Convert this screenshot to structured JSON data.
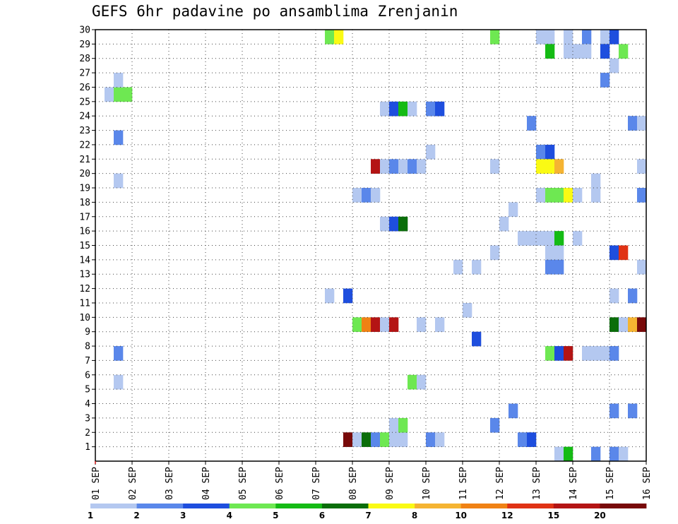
{
  "chart_data": {
    "type": "heatmap",
    "title": "GEFS 6hr padavine po ansamblima Zrenjanin",
    "xlabel": "",
    "ylabel": "",
    "x_tick_labels": [
      "01 SEP",
      "02 SEP",
      "03 SEP",
      "04 SEP",
      "05 SEP",
      "06 SEP",
      "07 SEP",
      "08 SEP",
      "09 SEP",
      "10 SEP",
      "11 SEP",
      "12 SEP",
      "13 SEP",
      "14 SEP",
      "15 SEP",
      "16 SEP"
    ],
    "y_ticks": [
      1,
      2,
      3,
      4,
      5,
      6,
      7,
      8,
      9,
      10,
      11,
      12,
      13,
      14,
      15,
      16,
      17,
      18,
      19,
      20,
      21,
      22,
      23,
      24,
      25,
      26,
      27,
      28,
      29,
      30
    ],
    "ylim": [
      0,
      30
    ],
    "steps_per_day": 4,
    "n_steps": 60,
    "grid": true,
    "color_levels": [
      1,
      2,
      3,
      4,
      5,
      6,
      7,
      8,
      10,
      12,
      15,
      20
    ],
    "color_bins": [
      "#b4c8f0",
      "#5a87ea",
      "#1e4ede",
      "#6ee852",
      "#14bb14",
      "#0a6e0a",
      "#fafa14",
      "#f5b432",
      "#f08214",
      "#e03214",
      "#b41414",
      "#780a0a"
    ],
    "cells": [
      [
        1,
        25,
        0
      ],
      [
        2,
        25,
        3
      ],
      [
        3,
        25,
        3
      ],
      [
        2,
        26,
        0
      ],
      [
        2,
        22,
        1
      ],
      [
        2,
        19,
        0
      ],
      [
        2,
        7,
        1
      ],
      [
        2,
        5,
        0
      ],
      [
        25,
        29,
        3
      ],
      [
        26,
        29,
        6
      ],
      [
        25,
        11,
        0
      ],
      [
        27,
        11,
        2
      ],
      [
        28,
        18,
        0
      ],
      [
        29,
        18,
        1
      ],
      [
        30,
        18,
        0
      ],
      [
        27,
        1,
        11
      ],
      [
        28,
        1,
        0
      ],
      [
        29,
        1,
        5
      ],
      [
        30,
        1,
        1
      ],
      [
        31,
        1,
        3
      ],
      [
        32,
        1,
        0
      ],
      [
        33,
        1,
        0
      ],
      [
        28,
        9,
        3
      ],
      [
        29,
        9,
        8
      ],
      [
        30,
        9,
        10
      ],
      [
        31,
        9,
        0
      ],
      [
        32,
        9,
        10
      ],
      [
        30,
        20,
        10
      ],
      [
        31,
        20,
        0
      ],
      [
        32,
        20,
        1
      ],
      [
        33,
        20,
        0
      ],
      [
        34,
        20,
        1
      ],
      [
        35,
        20,
        0
      ],
      [
        31,
        24,
        0
      ],
      [
        32,
        24,
        2
      ],
      [
        33,
        24,
        4
      ],
      [
        34,
        24,
        0
      ],
      [
        36,
        24,
        1
      ],
      [
        37,
        24,
        2
      ],
      [
        31,
        16,
        0
      ],
      [
        32,
        16,
        2
      ],
      [
        33,
        16,
        5
      ],
      [
        32,
        2,
        0
      ],
      [
        33,
        2,
        3
      ],
      [
        34,
        5,
        3
      ],
      [
        35,
        5,
        0
      ],
      [
        35,
        9,
        0
      ],
      [
        37,
        9,
        0
      ],
      [
        36,
        21,
        0
      ],
      [
        36,
        1,
        1
      ],
      [
        37,
        1,
        0
      ],
      [
        39,
        13,
        0
      ],
      [
        41,
        13,
        0
      ],
      [
        40,
        10,
        0
      ],
      [
        41,
        8,
        2
      ],
      [
        43,
        29,
        3
      ],
      [
        43,
        20,
        0
      ],
      [
        43,
        14,
        0
      ],
      [
        43,
        2,
        1
      ],
      [
        44,
        16,
        0
      ],
      [
        45,
        17,
        0
      ],
      [
        45,
        3,
        1
      ],
      [
        46,
        15,
        0
      ],
      [
        47,
        15,
        0
      ],
      [
        48,
        15,
        0
      ],
      [
        49,
        15,
        0
      ],
      [
        50,
        15,
        4
      ],
      [
        52,
        15,
        0
      ],
      [
        46,
        1,
        1
      ],
      [
        47,
        1,
        2
      ],
      [
        47,
        23,
        1
      ],
      [
        48,
        29,
        0
      ],
      [
        49,
        29,
        0
      ],
      [
        51,
        29,
        0
      ],
      [
        53,
        29,
        1
      ],
      [
        55,
        29,
        0
      ],
      [
        56,
        29,
        2
      ],
      [
        48,
        21,
        1
      ],
      [
        49,
        21,
        2
      ],
      [
        48,
        20,
        6
      ],
      [
        49,
        20,
        6
      ],
      [
        50,
        20,
        7
      ],
      [
        48,
        18,
        0
      ],
      [
        49,
        18,
        3
      ],
      [
        50,
        18,
        3
      ],
      [
        51,
        18,
        6
      ],
      [
        52,
        18,
        0
      ],
      [
        54,
        18,
        0
      ],
      [
        49,
        28,
        4
      ],
      [
        51,
        28,
        0
      ],
      [
        52,
        28,
        0
      ],
      [
        53,
        28,
        0
      ],
      [
        55,
        28,
        2
      ],
      [
        57,
        28,
        3
      ],
      [
        49,
        14,
        0
      ],
      [
        50,
        14,
        0
      ],
      [
        49,
        13,
        1
      ],
      [
        50,
        13,
        1
      ],
      [
        49,
        7,
        3
      ],
      [
        50,
        7,
        2
      ],
      [
        51,
        7,
        10
      ],
      [
        53,
        7,
        0
      ],
      [
        54,
        7,
        0
      ],
      [
        55,
        7,
        0
      ],
      [
        56,
        7,
        1
      ],
      [
        50,
        0,
        0
      ],
      [
        51,
        0,
        4
      ],
      [
        54,
        0,
        1
      ],
      [
        56,
        0,
        1
      ],
      [
        57,
        0,
        0
      ],
      [
        54,
        19,
        0
      ],
      [
        55,
        26,
        1
      ],
      [
        56,
        27,
        0
      ],
      [
        56,
        14,
        2
      ],
      [
        57,
        14,
        9
      ],
      [
        56,
        11,
        0
      ],
      [
        56,
        9,
        5
      ],
      [
        57,
        9,
        0
      ],
      [
        58,
        9,
        7
      ],
      [
        59,
        9,
        11
      ],
      [
        56,
        3,
        1
      ],
      [
        58,
        3,
        1
      ],
      [
        58,
        23,
        1
      ],
      [
        59,
        23,
        0
      ],
      [
        59,
        20,
        0
      ],
      [
        58,
        11,
        1
      ],
      [
        59,
        18,
        1
      ],
      [
        59,
        13,
        0
      ]
    ]
  }
}
